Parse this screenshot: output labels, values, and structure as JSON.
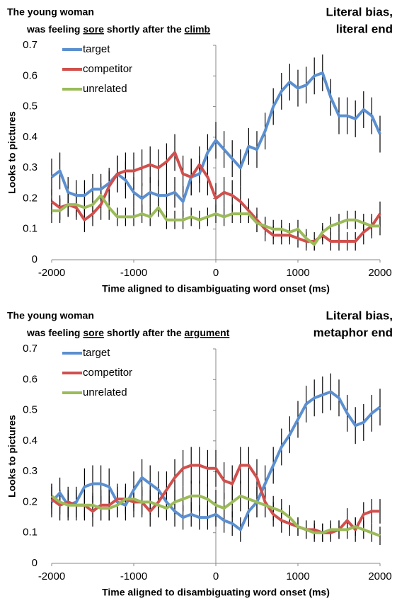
{
  "chart_data": [
    {
      "type": "line",
      "sentence_line1": "The young woman",
      "sentence_line2": [
        {
          "text": "was feeling "
        },
        {
          "text": "sore",
          "underline": true
        },
        {
          "text": " shortly after the "
        },
        {
          "text": "climb",
          "underline": true
        }
      ],
      "annotation": [
        "Literal bias,",
        "literal end"
      ],
      "xlabel": "Time aligned to disambiguating word onset (ms)",
      "ylabel": "Looks to pictures",
      "xlim": [
        -2000,
        2000
      ],
      "ylim": [
        0,
        0.7
      ],
      "xticks": [
        -2000,
        -1000,
        0,
        1000,
        2000
      ],
      "yticks": [
        0,
        0.1,
        0.2,
        0.3,
        0.4,
        0.5,
        0.6,
        0.7
      ],
      "x": [
        -2000,
        -1900,
        -1800,
        -1700,
        -1600,
        -1500,
        -1400,
        -1300,
        -1200,
        -1100,
        -1000,
        -900,
        -800,
        -700,
        -600,
        -500,
        -400,
        -300,
        -200,
        -100,
        0,
        100,
        200,
        300,
        400,
        500,
        600,
        700,
        800,
        900,
        1000,
        1100,
        1200,
        1300,
        1400,
        1500,
        1600,
        1700,
        1800,
        1900,
        2000
      ],
      "series": [
        {
          "name": "target",
          "color": "#5b8fd0",
          "values": [
            0.27,
            0.29,
            0.22,
            0.21,
            0.21,
            0.23,
            0.23,
            0.25,
            0.28,
            0.26,
            0.22,
            0.2,
            0.22,
            0.21,
            0.21,
            0.22,
            0.19,
            0.27,
            0.28,
            0.35,
            0.39,
            0.36,
            0.33,
            0.3,
            0.37,
            0.36,
            0.42,
            0.5,
            0.55,
            0.58,
            0.56,
            0.57,
            0.6,
            0.61,
            0.53,
            0.47,
            0.47,
            0.46,
            0.49,
            0.47,
            0.41
          ],
          "errors": [
            0.06,
            0.06,
            0.05,
            0.05,
            0.05,
            0.05,
            0.05,
            0.05,
            0.06,
            0.06,
            0.05,
            0.05,
            0.05,
            0.05,
            0.05,
            0.05,
            0.05,
            0.06,
            0.06,
            0.06,
            0.06,
            0.06,
            0.06,
            0.06,
            0.06,
            0.06,
            0.06,
            0.06,
            0.06,
            0.06,
            0.06,
            0.06,
            0.06,
            0.06,
            0.06,
            0.06,
            0.06,
            0.06,
            0.06,
            0.06,
            0.06
          ]
        },
        {
          "name": "competitor",
          "color": "#d0504d",
          "values": [
            0.19,
            0.17,
            0.18,
            0.17,
            0.13,
            0.15,
            0.18,
            0.24,
            0.28,
            0.29,
            0.29,
            0.3,
            0.31,
            0.3,
            0.32,
            0.35,
            0.28,
            0.27,
            0.31,
            0.27,
            0.2,
            0.22,
            0.21,
            0.19,
            0.16,
            0.13,
            0.1,
            0.08,
            0.08,
            0.08,
            0.07,
            0.06,
            0.06,
            0.08,
            0.06,
            0.06,
            0.06,
            0.06,
            0.09,
            0.11,
            0.15
          ],
          "errors": [
            0.04,
            0.04,
            0.04,
            0.04,
            0.04,
            0.04,
            0.05,
            0.05,
            0.06,
            0.06,
            0.06,
            0.06,
            0.06,
            0.06,
            0.06,
            0.06,
            0.06,
            0.06,
            0.06,
            0.06,
            0.05,
            0.05,
            0.05,
            0.05,
            0.04,
            0.04,
            0.04,
            0.03,
            0.03,
            0.03,
            0.03,
            0.03,
            0.03,
            0.03,
            0.03,
            0.03,
            0.03,
            0.03,
            0.04,
            0.04,
            0.04
          ]
        },
        {
          "name": "unrelated",
          "color": "#9bbb59",
          "values": [
            0.16,
            0.16,
            0.18,
            0.18,
            0.17,
            0.18,
            0.21,
            0.17,
            0.14,
            0.14,
            0.14,
            0.15,
            0.14,
            0.17,
            0.13,
            0.13,
            0.13,
            0.14,
            0.13,
            0.14,
            0.15,
            0.14,
            0.15,
            0.15,
            0.15,
            0.12,
            0.11,
            0.1,
            0.1,
            0.09,
            0.1,
            0.07,
            0.05,
            0.09,
            0.11,
            0.12,
            0.13,
            0.13,
            0.12,
            0.11,
            0.11
          ],
          "errors": [
            0.04,
            0.04,
            0.04,
            0.04,
            0.04,
            0.04,
            0.04,
            0.04,
            0.03,
            0.03,
            0.03,
            0.03,
            0.03,
            0.03,
            0.03,
            0.03,
            0.03,
            0.03,
            0.03,
            0.03,
            0.03,
            0.03,
            0.03,
            0.03,
            0.03,
            0.03,
            0.03,
            0.03,
            0.03,
            0.03,
            0.03,
            0.03,
            0.02,
            0.03,
            0.03,
            0.03,
            0.03,
            0.03,
            0.03,
            0.03,
            0.03
          ]
        }
      ]
    },
    {
      "type": "line",
      "sentence_line1": "The young woman",
      "sentence_line2": [
        {
          "text": "was feeling "
        },
        {
          "text": "sore",
          "underline": true
        },
        {
          "text": " shortly after the "
        },
        {
          "text": "argument",
          "underline": true
        }
      ],
      "annotation": [
        "Literal bias,",
        "metaphor end"
      ],
      "xlabel": "Time aligned to disambiguating word onset (ms)",
      "ylabel": "Looks to pictures",
      "xlim": [
        -2000,
        2000
      ],
      "ylim": [
        0,
        0.7
      ],
      "xticks": [
        -2000,
        -1000,
        0,
        1000,
        2000
      ],
      "yticks": [
        0,
        0.1,
        0.2,
        0.3,
        0.4,
        0.5,
        0.6,
        0.7
      ],
      "x": [
        -2000,
        -1900,
        -1800,
        -1700,
        -1600,
        -1500,
        -1400,
        -1300,
        -1200,
        -1100,
        -1000,
        -900,
        -800,
        -700,
        -600,
        -500,
        -400,
        -300,
        -200,
        -100,
        0,
        100,
        200,
        300,
        400,
        500,
        600,
        700,
        800,
        900,
        1000,
        1100,
        1200,
        1300,
        1400,
        1500,
        1600,
        1700,
        1800,
        1900,
        2000
      ],
      "series": [
        {
          "name": "target",
          "color": "#5b8fd0",
          "values": [
            0.2,
            0.23,
            0.19,
            0.2,
            0.25,
            0.26,
            0.26,
            0.25,
            0.2,
            0.19,
            0.24,
            0.28,
            0.26,
            0.24,
            0.2,
            0.17,
            0.15,
            0.16,
            0.15,
            0.15,
            0.16,
            0.14,
            0.13,
            0.11,
            0.17,
            0.2,
            0.26,
            0.32,
            0.38,
            0.42,
            0.47,
            0.52,
            0.54,
            0.55,
            0.56,
            0.54,
            0.49,
            0.45,
            0.46,
            0.49,
            0.51
          ],
          "errors": [
            0.05,
            0.05,
            0.05,
            0.05,
            0.06,
            0.06,
            0.06,
            0.06,
            0.05,
            0.05,
            0.06,
            0.06,
            0.06,
            0.06,
            0.05,
            0.05,
            0.04,
            0.04,
            0.04,
            0.04,
            0.04,
            0.04,
            0.04,
            0.04,
            0.05,
            0.05,
            0.06,
            0.06,
            0.06,
            0.06,
            0.06,
            0.06,
            0.06,
            0.06,
            0.06,
            0.06,
            0.06,
            0.06,
            0.06,
            0.06,
            0.06
          ]
        },
        {
          "name": "competitor",
          "color": "#d0504d",
          "values": [
            0.21,
            0.19,
            0.2,
            0.19,
            0.19,
            0.17,
            0.19,
            0.19,
            0.21,
            0.21,
            0.2,
            0.2,
            0.17,
            0.2,
            0.24,
            0.28,
            0.31,
            0.32,
            0.32,
            0.31,
            0.31,
            0.27,
            0.26,
            0.32,
            0.32,
            0.28,
            0.2,
            0.16,
            0.14,
            0.13,
            0.12,
            0.11,
            0.11,
            0.1,
            0.1,
            0.11,
            0.14,
            0.11,
            0.16,
            0.17,
            0.17
          ],
          "errors": [
            0.05,
            0.05,
            0.05,
            0.05,
            0.05,
            0.05,
            0.05,
            0.05,
            0.05,
            0.05,
            0.05,
            0.05,
            0.05,
            0.05,
            0.06,
            0.06,
            0.06,
            0.06,
            0.06,
            0.06,
            0.06,
            0.06,
            0.06,
            0.06,
            0.06,
            0.06,
            0.05,
            0.04,
            0.04,
            0.04,
            0.03,
            0.03,
            0.03,
            0.03,
            0.03,
            0.03,
            0.04,
            0.04,
            0.04,
            0.04,
            0.04
          ]
        },
        {
          "name": "unrelated",
          "color": "#9bbb59",
          "values": [
            0.22,
            0.2,
            0.19,
            0.19,
            0.19,
            0.19,
            0.18,
            0.18,
            0.19,
            0.21,
            0.21,
            0.2,
            0.2,
            0.19,
            0.18,
            0.2,
            0.21,
            0.22,
            0.22,
            0.21,
            0.19,
            0.18,
            0.2,
            0.22,
            0.21,
            0.2,
            0.19,
            0.18,
            0.17,
            0.15,
            0.12,
            0.11,
            0.1,
            0.1,
            0.11,
            0.11,
            0.11,
            0.12,
            0.11,
            0.1,
            0.09
          ],
          "errors": [
            0.04,
            0.04,
            0.04,
            0.04,
            0.04,
            0.04,
            0.04,
            0.04,
            0.04,
            0.04,
            0.04,
            0.04,
            0.04,
            0.04,
            0.04,
            0.04,
            0.04,
            0.05,
            0.05,
            0.05,
            0.05,
            0.05,
            0.05,
            0.05,
            0.05,
            0.05,
            0.04,
            0.04,
            0.04,
            0.04,
            0.03,
            0.03,
            0.03,
            0.03,
            0.03,
            0.03,
            0.03,
            0.03,
            0.03,
            0.03,
            0.03
          ]
        }
      ]
    }
  ]
}
